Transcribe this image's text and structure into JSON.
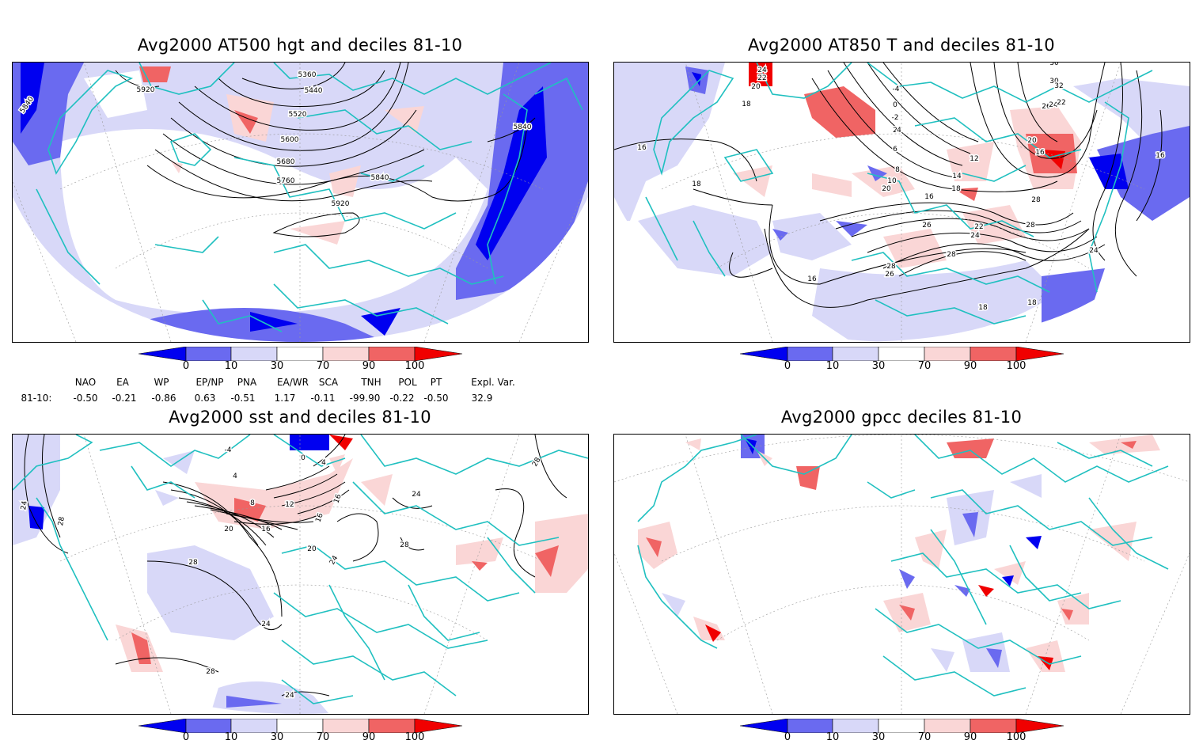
{
  "panels": [
    {
      "id": "p1",
      "title": "Avg2000 AT500 hgt and deciles 81-10",
      "contour_labels": [
        "5360",
        "5440",
        "5520",
        "5600",
        "5680",
        "5760",
        "5840",
        "5920",
        "5920",
        "5840",
        "5840"
      ]
    },
    {
      "id": "p2",
      "title": "Avg2000 AT850 T and deciles 81-10",
      "contour_labels": [
        "24",
        "22",
        "20",
        "18",
        "16",
        "18",
        "-4",
        "0",
        "-2",
        "2",
        "4",
        "6",
        "8",
        "10",
        "12",
        "14",
        "18",
        "16",
        "20",
        "22",
        "24",
        "26",
        "28",
        "28",
        "26",
        "24",
        "22",
        "20",
        "16",
        "28",
        "30",
        "30",
        "32",
        "28",
        "26",
        "24",
        "18",
        "18",
        "16",
        "16"
      ]
    },
    {
      "id": "p3",
      "title": "Avg2000 sst and deciles 81-10",
      "contour_labels": [
        "24",
        "28",
        "-4",
        "0",
        "4",
        "4",
        "8",
        "12",
        "16",
        "20",
        "16",
        "16",
        "20",
        "24",
        "24",
        "28",
        "28",
        "24",
        "28",
        "24",
        "28"
      ]
    },
    {
      "id": "p4",
      "title": "Avg2000 gpcc deciles 81-10",
      "contour_labels": []
    }
  ],
  "colorbar": {
    "labels": [
      "0",
      "10",
      "30",
      "70",
      "90",
      "100"
    ],
    "colors": [
      "#0000f0",
      "#6a6af0",
      "#d8d8f8",
      "#ffffff",
      "#fad6d6",
      "#f06464",
      "#f00000"
    ]
  },
  "indices": {
    "headers": [
      "NAO",
      "EA",
      "WP",
      "EP/NP",
      "PNA",
      "EA/WR",
      "SCA",
      "TNH",
      "POL",
      "PT",
      "Expl. Var."
    ],
    "row_label": "81-10:",
    "values": [
      "-0.50",
      "-0.21",
      "-0.86",
      "0.63",
      "-0.51",
      "1.17",
      "-0.11",
      "-99.90",
      "-0.22",
      "-0.50",
      "32.9"
    ]
  },
  "colors": {
    "coast": "#20c0c0",
    "blue_strong": "#0000f0",
    "blue_mid": "#6a6af0",
    "blue_light": "#d8d8f8",
    "red_light": "#fad6d6",
    "red_mid": "#f06464",
    "red_strong": "#f00000"
  }
}
